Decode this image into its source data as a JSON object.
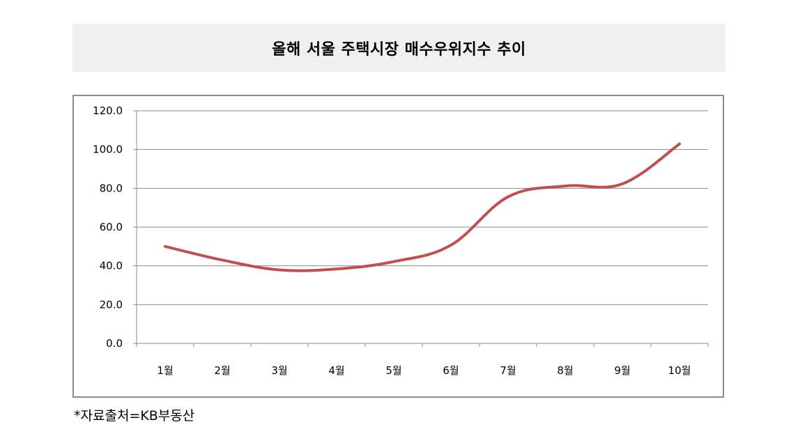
{
  "title": "올해 서울 주택시장 매수우위지수 추이",
  "source_note": "*자료출처=KB부동산",
  "colors": {
    "line": "#c0504d",
    "grid": "#888888",
    "banner": "#f0f0f0"
  },
  "chart_data": {
    "type": "line",
    "title": "올해 서울 주택시장 매수우위지수 추이",
    "categories": [
      "1월",
      "2월",
      "3월",
      "4월",
      "5월",
      "6월",
      "7월",
      "8월",
      "9월",
      "10월"
    ],
    "series": [
      {
        "values": [
          50.0,
          43.0,
          37.9,
          38.4,
          42.2,
          50.7,
          75.6,
          81.2,
          82.3,
          102.9
        ]
      }
    ],
    "yticks": [
      "0.0",
      "20.0",
      "40.0",
      "60.0",
      "80.0",
      "100.0",
      "120.0"
    ],
    "ylim": [
      0,
      120
    ],
    "grid": true,
    "legend": "none",
    "xlabel": "",
    "ylabel": ""
  }
}
